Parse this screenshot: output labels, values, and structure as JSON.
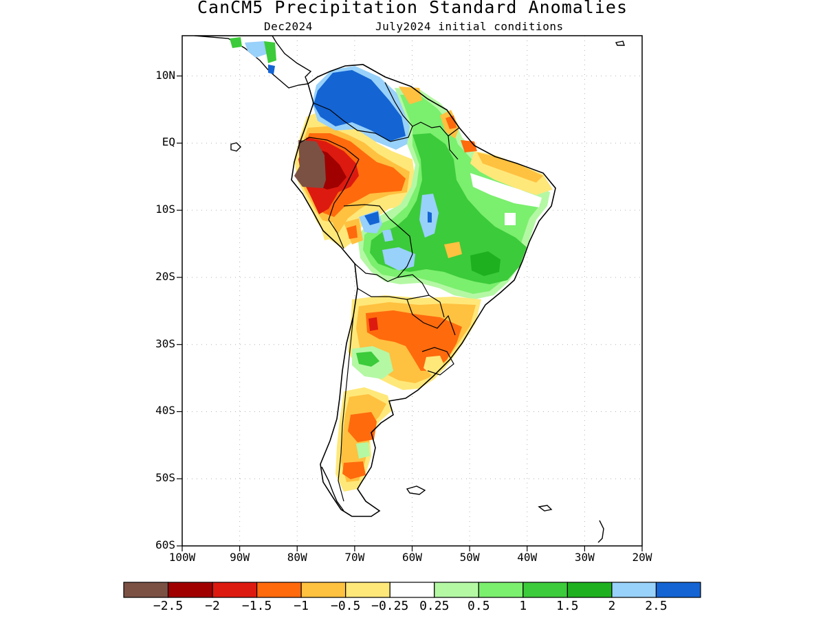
{
  "header": {
    "title": "CanCM5 Precipitation Standard Anomalies",
    "valid_month": "Dec2024",
    "init": "July2024 initial conditions"
  },
  "axes": {
    "lat_labels": [
      "10N",
      "EQ",
      "10S",
      "20S",
      "30S",
      "40S",
      "50S",
      "60S"
    ],
    "lat_values": [
      10,
      0,
      -10,
      -20,
      -30,
      -40,
      -50,
      -60
    ],
    "lon_labels": [
      "100W",
      "90W",
      "80W",
      "70W",
      "60W",
      "50W",
      "40W",
      "30W",
      "20W"
    ],
    "lon_values": [
      -100,
      -90,
      -80,
      -70,
      -60,
      -50,
      -40,
      -30,
      -20
    ],
    "lon_range": [
      -100,
      -20
    ],
    "lat_range": [
      -60,
      16
    ],
    "grid": "dotted"
  },
  "colorbar": {
    "colors": [
      "#7b5144",
      "#a00000",
      "#dd1a10",
      "#ff6a0d",
      "#ffc140",
      "#ffe87a",
      "#ffffff",
      "#b4f8a4",
      "#7bef6e",
      "#3ccb3a",
      "#1eb01f",
      "#98d1fa",
      "#1464d3"
    ],
    "labels": [
      "−2.5",
      "−2",
      "−1.5",
      "−1",
      "−0.5",
      "−0.25",
      "0.25",
      "0.5",
      "1",
      "1.5",
      "2",
      "2.5"
    ]
  }
}
